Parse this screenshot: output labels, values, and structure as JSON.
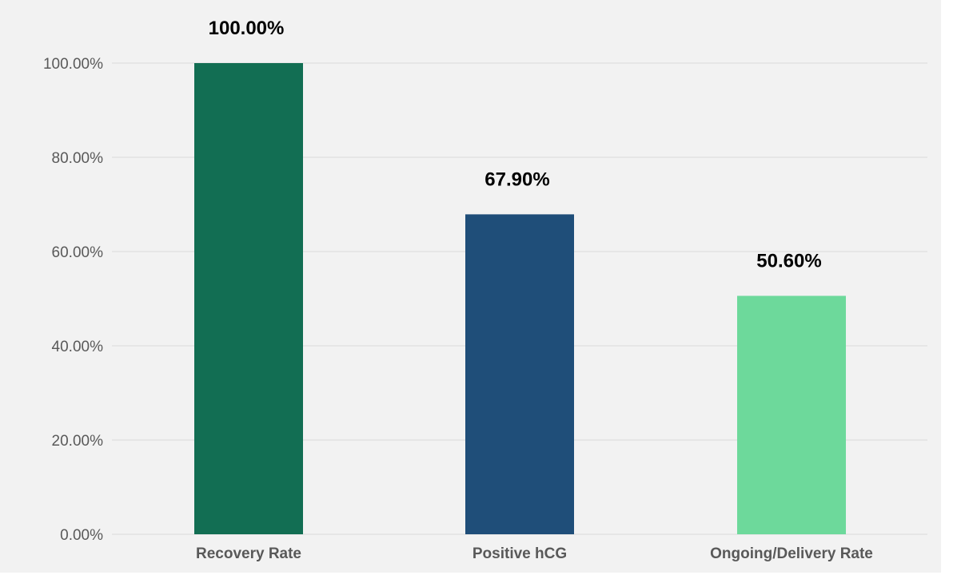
{
  "chart_data": {
    "type": "bar",
    "title": "",
    "xlabel": "",
    "ylabel": "",
    "categories": [
      "Recovery Rate",
      "Positive hCG",
      "Ongoing/Delivery Rate"
    ],
    "values": [
      100.0,
      67.9,
      50.6
    ],
    "data_labels": [
      "100.00%",
      "67.90%",
      "50.60%"
    ],
    "colors": [
      "#126e53",
      "#1f4e79",
      "#6dd99b"
    ],
    "ylim": [
      0,
      100
    ],
    "yticks": [
      0,
      20,
      40,
      60,
      80,
      100
    ],
    "ytick_labels": [
      "0.00%",
      "20.00%",
      "40.00%",
      "60.00%",
      "80.00%",
      "100.00%"
    ],
    "grid": true,
    "legend": "none"
  }
}
